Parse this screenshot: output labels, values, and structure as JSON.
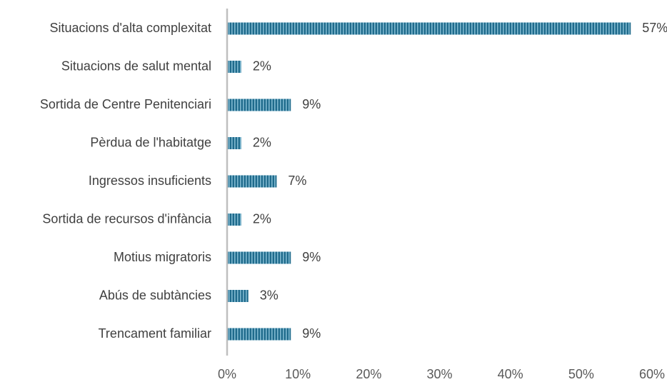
{
  "chart_data": {
    "type": "bar",
    "orientation": "horizontal",
    "title": "",
    "xlabel": "",
    "ylabel": "",
    "categories": [
      "Situacions d'alta complexitat",
      "Situacions de salut mental",
      "Sortida de Centre Penitenciari",
      "Pèrdua de l'habitatge",
      "Ingressos insuficients",
      "Sortida de recursos d'infància",
      "Motius migratoris",
      "Abús de subtàncies",
      "Trencament familiar"
    ],
    "values": [
      57,
      2,
      9,
      2,
      7,
      2,
      9,
      3,
      9
    ],
    "value_labels": [
      "57%",
      "2%",
      "9%",
      "2%",
      "7%",
      "2%",
      "9%",
      "3%",
      "9%"
    ],
    "xlim": [
      0,
      60
    ],
    "xticks": [
      0,
      10,
      20,
      30,
      40,
      50,
      60
    ],
    "xtick_labels": [
      "0%",
      "10%",
      "20%",
      "30%",
      "40%",
      "50%",
      "60%"
    ],
    "grid": false,
    "legend": "none",
    "bar_pattern": "vertical-stripes",
    "bar_color": "#1f6b8c",
    "bar_stripe_color": "#7fb8d0",
    "axis_color": "#bfbfbf"
  }
}
